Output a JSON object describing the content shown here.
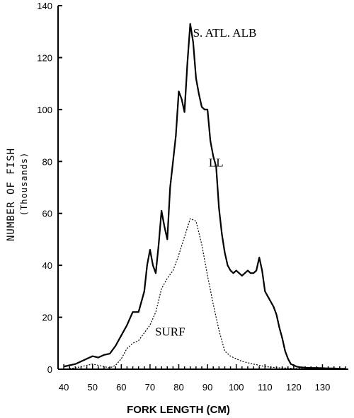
{
  "chart_data": {
    "type": "line",
    "title": "S. ATL. ALB",
    "xlabel": "FORK LENGTH (CM)",
    "ylabel": "NUMBER OF FISH",
    "ylabel_sub": "(Thousands)",
    "xlim": [
      38,
      139
    ],
    "ylim": [
      0,
      140
    ],
    "x_ticks": [
      40,
      50,
      60,
      70,
      80,
      90,
      100,
      110,
      120,
      130
    ],
    "y_ticks": [
      0,
      20,
      40,
      60,
      80,
      100,
      120,
      140
    ],
    "grid": false,
    "series": [
      {
        "name": "LL",
        "style": "solid",
        "x": [
          40,
          42,
          44,
          46,
          48,
          50,
          52,
          54,
          56,
          58,
          60,
          62,
          64,
          66,
          68,
          69,
          70,
          71,
          72,
          73,
          74,
          75,
          76,
          77,
          78,
          79,
          80,
          81,
          82,
          83,
          84,
          85,
          86,
          87,
          88,
          89,
          90,
          91,
          92,
          93,
          94,
          95,
          96,
          97,
          98,
          99,
          100,
          101,
          102,
          103,
          104,
          105,
          106,
          107,
          108,
          109,
          110,
          111,
          112,
          113,
          114,
          115,
          116,
          117,
          118,
          119,
          120,
          121,
          122,
          124,
          126,
          128,
          130,
          132,
          134,
          136,
          138
        ],
        "values": [
          1,
          1.5,
          2,
          3,
          4,
          5,
          4.5,
          5.5,
          6,
          9,
          13,
          17,
          22,
          22,
          30,
          40,
          46,
          40,
          37,
          48,
          61,
          55,
          50,
          70,
          80,
          90,
          107,
          104,
          99,
          118,
          133,
          126,
          112,
          106,
          101,
          100,
          100,
          88,
          82,
          78,
          62,
          52,
          45,
          40,
          38,
          37,
          38,
          37,
          36,
          37,
          38,
          37,
          37,
          38,
          43,
          38,
          30,
          28,
          26,
          24,
          21,
          16,
          12,
          7,
          4,
          2,
          1.5,
          1,
          0.8,
          0.6,
          0.5,
          0.5,
          0.4,
          0.3,
          0.3,
          0.2,
          0.2
        ]
      },
      {
        "name": "SURF",
        "style": "dotted",
        "x": [
          40,
          44,
          46,
          48,
          50,
          52,
          54,
          56,
          58,
          60,
          62,
          64,
          66,
          68,
          70,
          72,
          74,
          76,
          78,
          80,
          82,
          84,
          86,
          88,
          90,
          92,
          94,
          96,
          98,
          100,
          102,
          104,
          106,
          108,
          110,
          112,
          114,
          116,
          118,
          120,
          124,
          128,
          132,
          136,
          138
        ],
        "values": [
          0,
          0.5,
          1,
          1.5,
          2,
          1.5,
          1,
          0.5,
          1.5,
          4,
          8,
          10,
          11,
          14,
          17,
          22,
          31,
          35,
          38,
          44,
          51,
          58,
          57,
          48,
          36,
          25,
          15,
          7,
          5,
          4,
          3,
          2.5,
          2,
          1.5,
          1,
          0.8,
          0.6,
          0.5,
          0.4,
          0.3,
          0.2,
          0.2,
          0.1,
          0.1,
          0.1
        ]
      }
    ],
    "annotations": [
      {
        "text": "S. ATL.   ALB",
        "x": 96,
        "y": 128
      },
      {
        "text": "LL",
        "x": 93,
        "y": 78
      },
      {
        "text": "SURF",
        "x": 77,
        "y": 13
      }
    ]
  }
}
